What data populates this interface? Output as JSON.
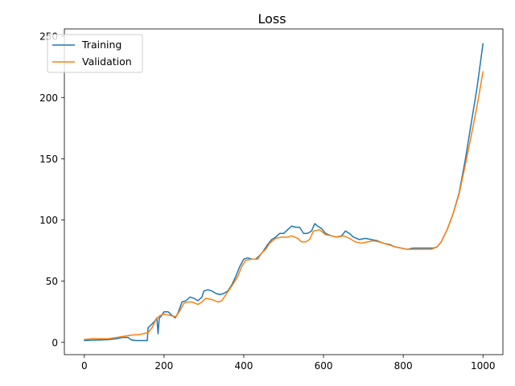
{
  "chart_data": {
    "type": "line",
    "title": "Loss",
    "xlabel": "",
    "ylabel": "",
    "xlim": [
      -50,
      1050
    ],
    "ylim": [
      -10,
      256
    ],
    "xticks": [
      0,
      200,
      400,
      600,
      800,
      1000
    ],
    "yticks": [
      0,
      50,
      100,
      150,
      200,
      250
    ],
    "grid": false,
    "legend_position": "top-left",
    "series": [
      {
        "name": "Training",
        "color": "#1f77b4",
        "points": [
          [
            0,
            1.5
          ],
          [
            20,
            1.8
          ],
          [
            40,
            2.0
          ],
          [
            60,
            2.2
          ],
          [
            80,
            3.0
          ],
          [
            95,
            4.0
          ],
          [
            110,
            4.0
          ],
          [
            118,
            2.0
          ],
          [
            130,
            1.5
          ],
          [
            150,
            1.5
          ],
          [
            158,
            1.5
          ],
          [
            160,
            12.0
          ],
          [
            170,
            15.0
          ],
          [
            178,
            18.0
          ],
          [
            182,
            20.0
          ],
          [
            185,
            7.0
          ],
          [
            188,
            20.0
          ],
          [
            192,
            21.0
          ],
          [
            200,
            25.0
          ],
          [
            210,
            25.0
          ],
          [
            220,
            22.0
          ],
          [
            228,
            20.0
          ],
          [
            235,
            24.0
          ],
          [
            245,
            33.0
          ],
          [
            255,
            34.0
          ],
          [
            265,
            37.0
          ],
          [
            275,
            36.0
          ],
          [
            285,
            34.0
          ],
          [
            295,
            37.0
          ],
          [
            300,
            42.0
          ],
          [
            310,
            43.0
          ],
          [
            320,
            42.0
          ],
          [
            330,
            40.0
          ],
          [
            340,
            39.0
          ],
          [
            350,
            40.0
          ],
          [
            360,
            42.0
          ],
          [
            370,
            47.0
          ],
          [
            380,
            54.0
          ],
          [
            390,
            62.0
          ],
          [
            400,
            68.0
          ],
          [
            410,
            69.0
          ],
          [
            420,
            68.0
          ],
          [
            430,
            68.0
          ],
          [
            440,
            71.0
          ],
          [
            450,
            75.0
          ],
          [
            460,
            80.0
          ],
          [
            470,
            84.0
          ],
          [
            480,
            86.0
          ],
          [
            490,
            89.0
          ],
          [
            500,
            89.0
          ],
          [
            510,
            92.0
          ],
          [
            520,
            95.0
          ],
          [
            530,
            94.0
          ],
          [
            540,
            94.0
          ],
          [
            550,
            89.0
          ],
          [
            560,
            89.0
          ],
          [
            570,
            91.0
          ],
          [
            578,
            97.0
          ],
          [
            585,
            95.0
          ],
          [
            595,
            93.0
          ],
          [
            605,
            89.0
          ],
          [
            620,
            87.0
          ],
          [
            632,
            86.0
          ],
          [
            645,
            87.0
          ],
          [
            655,
            91.0
          ],
          [
            665,
            89.0
          ],
          [
            675,
            86.0
          ],
          [
            690,
            84.0
          ],
          [
            705,
            85.0
          ],
          [
            720,
            84.0
          ],
          [
            735,
            83.0
          ],
          [
            750,
            81.0
          ],
          [
            765,
            80.0
          ],
          [
            780,
            78.0
          ],
          [
            795,
            77.0
          ],
          [
            810,
            76.0
          ],
          [
            825,
            77.0
          ],
          [
            840,
            77.0
          ],
          [
            860,
            77.0
          ],
          [
            875,
            77.0
          ],
          [
            885,
            78.0
          ],
          [
            895,
            82.0
          ],
          [
            910,
            92.0
          ],
          [
            925,
            105.0
          ],
          [
            940,
            122.0
          ],
          [
            955,
            148.0
          ],
          [
            970,
            178.0
          ],
          [
            985,
            208.0
          ],
          [
            1000,
            244.0
          ]
        ]
      },
      {
        "name": "Validation",
        "color": "#ff7f0e",
        "points": [
          [
            0,
            2.5
          ],
          [
            20,
            3.0
          ],
          [
            40,
            3.0
          ],
          [
            60,
            3.0
          ],
          [
            80,
            4.0
          ],
          [
            100,
            5.0
          ],
          [
            120,
            6.0
          ],
          [
            140,
            6.5
          ],
          [
            160,
            8.0
          ],
          [
            170,
            12.0
          ],
          [
            180,
            19.0
          ],
          [
            190,
            22.0
          ],
          [
            200,
            23.0
          ],
          [
            215,
            22.0
          ],
          [
            230,
            21.0
          ],
          [
            240,
            26.0
          ],
          [
            250,
            32.0
          ],
          [
            260,
            33.0
          ],
          [
            270,
            33.0
          ],
          [
            285,
            31.0
          ],
          [
            295,
            33.0
          ],
          [
            305,
            36.0
          ],
          [
            320,
            35.0
          ],
          [
            335,
            33.0
          ],
          [
            345,
            34.0
          ],
          [
            355,
            39.0
          ],
          [
            370,
            46.0
          ],
          [
            385,
            54.0
          ],
          [
            395,
            62.0
          ],
          [
            405,
            67.0
          ],
          [
            420,
            68.0
          ],
          [
            435,
            68.0
          ],
          [
            445,
            73.0
          ],
          [
            455,
            76.0
          ],
          [
            465,
            81.0
          ],
          [
            480,
            85.0
          ],
          [
            495,
            86.0
          ],
          [
            510,
            86.0
          ],
          [
            520,
            87.0
          ],
          [
            535,
            85.0
          ],
          [
            545,
            82.0
          ],
          [
            555,
            82.0
          ],
          [
            565,
            84.0
          ],
          [
            575,
            91.0
          ],
          [
            590,
            92.0
          ],
          [
            605,
            88.0
          ],
          [
            620,
            87.0
          ],
          [
            635,
            86.0
          ],
          [
            650,
            87.0
          ],
          [
            665,
            85.0
          ],
          [
            680,
            82.0
          ],
          [
            695,
            81.0
          ],
          [
            710,
            82.0
          ],
          [
            725,
            83.0
          ],
          [
            740,
            82.0
          ],
          [
            760,
            80.0
          ],
          [
            780,
            78.0
          ],
          [
            795,
            77.0
          ],
          [
            810,
            76.0
          ],
          [
            830,
            76.0
          ],
          [
            850,
            76.0
          ],
          [
            870,
            76.0
          ],
          [
            885,
            78.0
          ],
          [
            895,
            82.0
          ],
          [
            910,
            92.0
          ],
          [
            925,
            105.0
          ],
          [
            940,
            121.0
          ],
          [
            955,
            144.0
          ],
          [
            970,
            168.0
          ],
          [
            985,
            193.0
          ],
          [
            1000,
            221.0
          ]
        ]
      }
    ]
  }
}
